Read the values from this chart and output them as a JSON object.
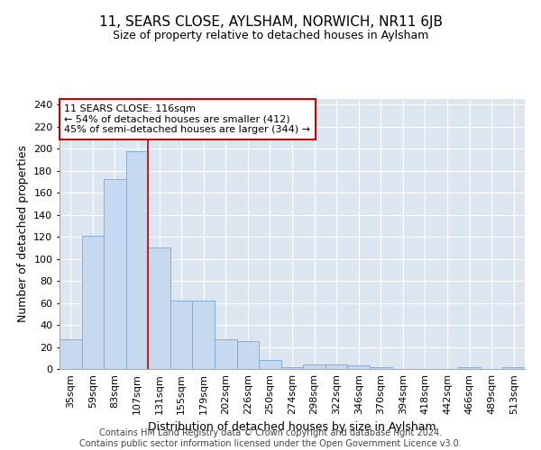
{
  "title": "11, SEARS CLOSE, AYLSHAM, NORWICH, NR11 6JB",
  "subtitle": "Size of property relative to detached houses in Aylsham",
  "xlabel": "Distribution of detached houses by size in Aylsham",
  "ylabel": "Number of detached properties",
  "categories": [
    "35sqm",
    "59sqm",
    "83sqm",
    "107sqm",
    "131sqm",
    "155sqm",
    "179sqm",
    "202sqm",
    "226sqm",
    "250sqm",
    "274sqm",
    "298sqm",
    "322sqm",
    "346sqm",
    "370sqm",
    "394sqm",
    "418sqm",
    "442sqm",
    "466sqm",
    "489sqm",
    "513sqm"
  ],
  "values": [
    27,
    121,
    172,
    198,
    110,
    62,
    62,
    27,
    25,
    8,
    2,
    4,
    4,
    3,
    2,
    0,
    0,
    0,
    2,
    0,
    2
  ],
  "bar_color": "#c6d9f0",
  "bar_edge_color": "#7aa7d0",
  "vline_pos": 3.5,
  "vline_color": "#cc0000",
  "annotation_text": "11 SEARS CLOSE: 116sqm\n← 54% of detached houses are smaller (412)\n45% of semi-detached houses are larger (344) →",
  "annotation_box_facecolor": "#ffffff",
  "annotation_box_edgecolor": "#cc0000",
  "ylim": [
    0,
    245
  ],
  "yticks": [
    0,
    20,
    40,
    60,
    80,
    100,
    120,
    140,
    160,
    180,
    200,
    220,
    240
  ],
  "plot_bg_color": "#dce6f1",
  "fig_bg_color": "#ffffff",
  "title_fontsize": 11,
  "subtitle_fontsize": 9,
  "ylabel_fontsize": 9,
  "xlabel_fontsize": 9,
  "tick_fontsize": 8,
  "annot_fontsize": 8,
  "footer_fontsize": 7,
  "footer_line1": "Contains HM Land Registry data © Crown copyright and database right 2024.",
  "footer_line2": "Contains public sector information licensed under the Open Government Licence v3.0."
}
